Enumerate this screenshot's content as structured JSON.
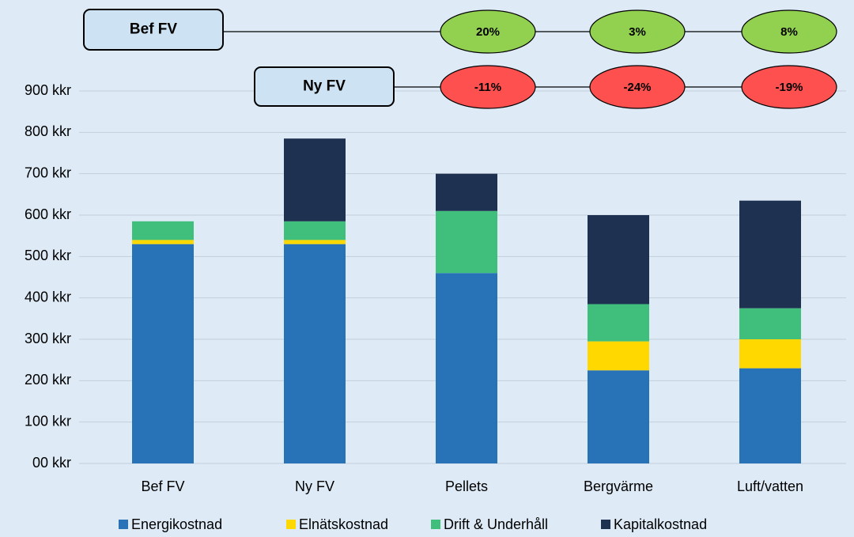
{
  "chart_data": {
    "type": "stacked_bar",
    "categories": [
      "Bef FV",
      "Ny FV",
      "Pellets",
      "Bergvärme",
      "Luft/vatten"
    ],
    "series": [
      {
        "name": "Energikostnad",
        "color": "#2872b8",
        "values": [
          530,
          530,
          460,
          225,
          230
        ]
      },
      {
        "name": "Elnätskostnad",
        "color": "#ffd800",
        "values": [
          10,
          10,
          0,
          70,
          70
        ]
      },
      {
        "name": "Drift & Underhåll",
        "color": "#3fbf7b",
        "values": [
          45,
          45,
          150,
          90,
          75
        ]
      },
      {
        "name": "Kapitalkostnad",
        "color": "#1f3150",
        "values": [
          0,
          200,
          90,
          215,
          260
        ]
      }
    ],
    "ylim": [
      0,
      900
    ],
    "yticks": [
      {
        "value": 0,
        "label": "00 kkr"
      },
      {
        "value": 100,
        "label": "100 kkr"
      },
      {
        "value": 200,
        "label": "200 kkr"
      },
      {
        "value": 300,
        "label": "300 kkr"
      },
      {
        "value": 400,
        "label": "400 kkr"
      },
      {
        "value": 500,
        "label": "500 kkr"
      },
      {
        "value": 600,
        "label": "600 kkr"
      },
      {
        "value": 700,
        "label": "700 kkr"
      },
      {
        "value": 800,
        "label": "800 kkr"
      },
      {
        "value": 900,
        "label": "900 kkr"
      }
    ],
    "grid": true,
    "legend": "bottom",
    "annotations": [
      {
        "label": "Bef FV",
        "color": "#92d050",
        "values": [
          20,
          3,
          8
        ],
        "value_labels": [
          "20%",
          "3%",
          "8%"
        ]
      },
      {
        "label": "Ny FV",
        "color": "#ff5050",
        "values": [
          -11,
          -24,
          -19
        ],
        "value_labels": [
          "-11%",
          "-24%",
          "-19%"
        ]
      }
    ]
  }
}
